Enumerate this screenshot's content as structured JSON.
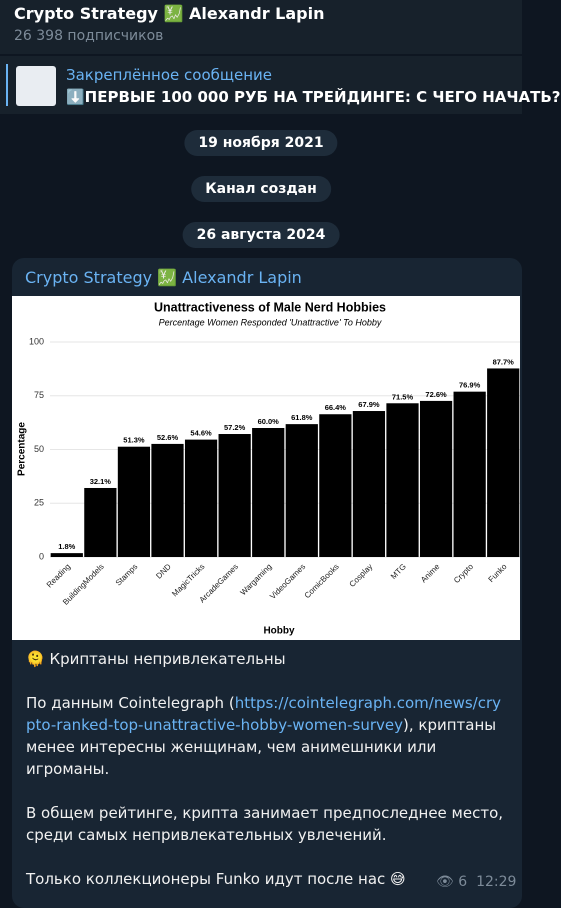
{
  "header": {
    "title": "Crypto Strategy 💹 Alexandr Lapin",
    "subtitle": "26 398 подписчиков"
  },
  "pinned": {
    "label": "Закреплённое сообщение",
    "text": "⬇️ПЕРВЫЕ 100 000 РУБ НА ТРЕЙДИНГЕ: С ЧЕГО НАЧАТЬ?"
  },
  "service": [
    "19 ноября 2021",
    "Канал создан",
    "26 августа 2024"
  ],
  "message": {
    "author": "Crypto Strategy 💹 Alexandr Lapin",
    "chart": {
      "type": "bar",
      "title": "Unattractiveness of Male Nerd Hobbies",
      "subtitle": "Percentage Women Responded 'Unattractive' To Hobby",
      "x_label": "Hobby",
      "y_label": "Percentage",
      "categories": [
        "Reading",
        "BuildingModels",
        "Stamps",
        "DND",
        "MagicTricks",
        "ArcadeGames",
        "Wargaming",
        "VideoGames",
        "ComicBooks",
        "Cosplay",
        "MTG",
        "Anime",
        "Crypto",
        "Funko"
      ],
      "values": [
        1.8,
        32.1,
        51.3,
        52.6,
        54.6,
        57.2,
        60,
        61.8,
        66.4,
        67.9,
        71.5,
        72.6,
        76.9,
        87.7
      ],
      "value_labels": [
        "1.8%",
        "32.1%",
        "51.3%",
        "52.6%",
        "54.6%",
        "57.2%",
        "60.0%",
        "61.8%",
        "66.4%",
        "67.9%",
        "71.5%",
        "72.6%",
        "76.9%",
        "87.7%"
      ],
      "color": "#000000",
      "ylim": [
        0,
        100
      ],
      "yticks": [
        0,
        25,
        50,
        75,
        100
      ],
      "grid": true
    },
    "heading": "🫠 Криптаны непривлекательны",
    "source": {
      "before": "По данным Cointelegraph (",
      "link": "https://cointelegraph.com/news/crypto-ranked-top-unattractive-hobby-women-survey",
      "after": "), криптаны менее интересны женщинам, чем анимешники или игроманы."
    },
    "paragraphs": [
      "В общем рейтинге, крипта занимает предпоследнее место, среди самых непривлекательных увлечений.",
      "Только коллекционеры Funko идут после нас 😅"
    ],
    "views": 6,
    "time": "12:29"
  }
}
